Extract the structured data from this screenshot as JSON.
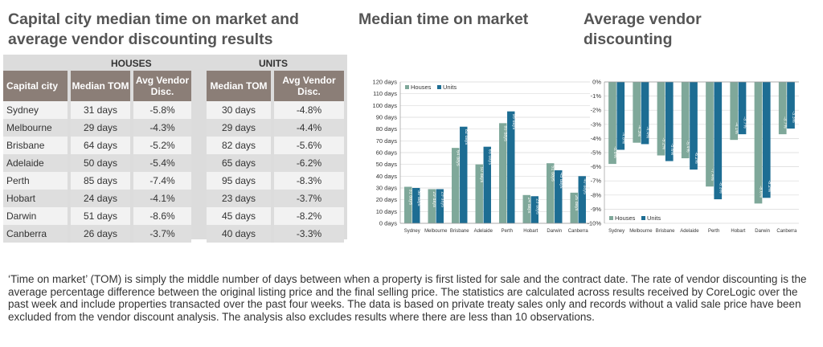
{
  "titles": {
    "main": "Capital city median time on market and average vendor discounting results",
    "tom": "Median time on market",
    "avd": "Average vendor discounting"
  },
  "table": {
    "group_houses": "HOUSES",
    "group_units": "UNITS",
    "headers": {
      "city": "Capital city",
      "tom": "Median TOM",
      "disc": "Avg Vendor Disc."
    },
    "rows": [
      {
        "city": "Sydney",
        "h_tom": "31 days",
        "h_disc": "-5.8%",
        "u_tom": "30 days",
        "u_disc": "-4.8%"
      },
      {
        "city": "Melbourne",
        "h_tom": "29 days",
        "h_disc": "-4.3%",
        "u_tom": "29 days",
        "u_disc": "-4.4%"
      },
      {
        "city": "Brisbane",
        "h_tom": "64 days",
        "h_disc": "-5.2%",
        "u_tom": "82 days",
        "u_disc": "-5.6%"
      },
      {
        "city": "Adelaide",
        "h_tom": "50 days",
        "h_disc": "-5.4%",
        "u_tom": "65 days",
        "u_disc": "-6.2%"
      },
      {
        "city": "Perth",
        "h_tom": "85 days",
        "h_disc": "-7.4%",
        "u_tom": "95 days",
        "u_disc": "-8.3%"
      },
      {
        "city": "Hobart",
        "h_tom": "24 days",
        "h_disc": "-4.1%",
        "u_tom": "23 days",
        "u_disc": "-3.7%"
      },
      {
        "city": "Darwin",
        "h_tom": "51 days",
        "h_disc": "-8.6%",
        "u_tom": "45 days",
        "u_disc": "-8.2%"
      },
      {
        "city": "Canberra",
        "h_tom": "26 days",
        "h_disc": "-3.7%",
        "u_tom": "40 days",
        "u_disc": "-3.3%"
      }
    ]
  },
  "colors": {
    "houses": "#7fa89a",
    "units": "#1d6d93",
    "header": "#8b7e77"
  },
  "chart_data": [
    {
      "type": "bar",
      "title": "Median time on market",
      "categories": [
        "Sydney",
        "Melbourne",
        "Brisbane",
        "Adelaide",
        "Perth",
        "Hobart",
        "Darwin",
        "Canberra"
      ],
      "series": [
        {
          "name": "Houses",
          "values": [
            31,
            29,
            64,
            50,
            85,
            24,
            51,
            26
          ],
          "labels": [
            "31 days",
            "29 days",
            "64 days",
            "50 days",
            "85 days",
            "24 days",
            "51 days",
            "26 days"
          ]
        },
        {
          "name": "Units",
          "values": [
            30,
            29,
            82,
            65,
            95,
            23,
            45,
            40
          ],
          "labels": [
            "30 days",
            "29 days",
            "82 days",
            "65 days",
            "95 days",
            "23 days",
            "45 days",
            "40 days"
          ]
        }
      ],
      "ylim": [
        0,
        120
      ],
      "yticks": [
        "0 days",
        "10 days",
        "20 days",
        "30 days",
        "40 days",
        "50 days",
        "60 days",
        "70 days",
        "80 days",
        "90 days",
        "100 days",
        "110 days",
        "120 days"
      ],
      "legend": "top-left",
      "grid": true
    },
    {
      "type": "bar",
      "title": "Average vendor discounting",
      "categories": [
        "Sydney",
        "Melbourne",
        "Brisbane",
        "Adelaide",
        "Perth",
        "Hobart",
        "Darwin",
        "Canberra"
      ],
      "series": [
        {
          "name": "Houses",
          "values": [
            -5.8,
            -4.3,
            -5.2,
            -5.4,
            -7.4,
            -4.1,
            -8.6,
            -3.7
          ],
          "labels": [
            "-5.8%",
            "-4.3%",
            "-5.2%",
            "-5.4%",
            "-7.4%",
            "-4.1%",
            "-8.6%",
            "-3.7%"
          ]
        },
        {
          "name": "Units",
          "values": [
            -4.8,
            -4.4,
            -5.6,
            -6.2,
            -8.3,
            -3.7,
            -8.2,
            -3.3
          ],
          "labels": [
            "-4.8%",
            "-4.4%",
            "-5.6%",
            "-6.2%",
            "-8.3%",
            "-3.7%",
            "-8.2%",
            "-3.3%"
          ]
        }
      ],
      "ylim": [
        -10,
        0
      ],
      "yticks": [
        "0%",
        "-1%",
        "-2%",
        "-3%",
        "-4%",
        "-5%",
        "-6%",
        "-7%",
        "-8%",
        "-9%",
        "-10%"
      ],
      "legend": "bottom-left",
      "grid": true
    }
  ],
  "footnote": "‘Time on market’ (TOM) is simply the middle number of days between when a property is first listed for sale and the contract date.  The rate of vendor discounting is the average percentage difference between the original listing price and the final selling price.  The statistics are calculated across results received by CoreLogic over the past week and include properties transacted over the past four weeks. The data is based on private treaty sales only and records without a valid sale price have been excluded from the vendor discount analysis. The analysis also excludes results where there are less than 10 observations."
}
